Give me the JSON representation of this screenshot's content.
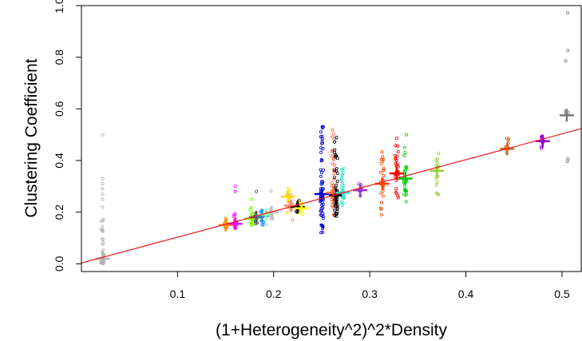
{
  "chart_data": {
    "type": "scatter",
    "title": "",
    "xlabel": "(1+Heterogeneity^2)^2*Density",
    "ylabel": "Clustering Coefficient",
    "xlim": [
      0.0,
      0.52
    ],
    "ylim": [
      -0.03,
      1.0
    ],
    "xticks": [
      {
        "value": 0.1,
        "label": "0.1"
      },
      {
        "value": 0.2,
        "label": "0.2"
      },
      {
        "value": 0.3,
        "label": "0.3"
      },
      {
        "value": 0.4,
        "label": "0.4"
      },
      {
        "value": 0.5,
        "label": "0.5"
      }
    ],
    "yticks": [
      {
        "value": 0.0,
        "label": "0.0"
      },
      {
        "value": 0.2,
        "label": "0.2"
      },
      {
        "value": 0.4,
        "label": "0.4"
      },
      {
        "value": 0.6,
        "label": "0.6"
      },
      {
        "value": 0.8,
        "label": "0.8"
      },
      {
        "value": 1.0,
        "label": "1.0"
      }
    ],
    "grid": false,
    "legend": "none",
    "regression_line": {
      "color": "#e31a1c",
      "intercept": 0.003,
      "slope": 1.0
    },
    "groups": [
      {
        "x": 0.022,
        "color": "#b3b3b3",
        "mean": 0.02,
        "low": 0.0,
        "high": 0.18,
        "n": 40,
        "outliers": [
          0.22,
          0.25,
          0.27,
          0.29,
          0.31,
          0.33,
          0.5
        ]
      },
      {
        "x": 0.15,
        "color": "#ff8c00",
        "mean": 0.15,
        "low": 0.13,
        "high": 0.19,
        "n": 14,
        "outliers": []
      },
      {
        "x": 0.16,
        "color": "#ff00ff",
        "mean": 0.155,
        "low": 0.13,
        "high": 0.21,
        "n": 14,
        "outliers": [
          0.3,
          0.28
        ]
      },
      {
        "x": 0.177,
        "color": "#7cfc00",
        "mean": 0.175,
        "low": 0.15,
        "high": 0.22,
        "n": 14,
        "outliers": [
          0.25
        ]
      },
      {
        "x": 0.182,
        "color": "#555555",
        "mean": 0.18,
        "low": 0.15,
        "high": 0.24,
        "n": 14,
        "outliers": [
          0.28
        ]
      },
      {
        "x": 0.188,
        "color": "#1e90ff",
        "mean": 0.185,
        "low": 0.15,
        "high": 0.21,
        "n": 12,
        "outliers": []
      },
      {
        "x": 0.192,
        "color": "#98fb98",
        "mean": 0.19,
        "low": 0.15,
        "high": 0.21,
        "n": 10,
        "outliers": []
      },
      {
        "x": 0.198,
        "color": "#bbbbbb",
        "mean": 0.2,
        "low": 0.15,
        "high": 0.33,
        "n": 12,
        "outliers": []
      },
      {
        "x": 0.215,
        "color": "#ffd700",
        "mean": 0.26,
        "low": 0.19,
        "high": 0.3,
        "n": 12,
        "outliers": []
      },
      {
        "x": 0.218,
        "color": "#ff7f7f",
        "mean": 0.225,
        "low": 0.16,
        "high": 0.27,
        "n": 10,
        "outliers": []
      },
      {
        "x": 0.225,
        "color": "#000000",
        "mean": 0.22,
        "low": 0.19,
        "high": 0.25,
        "n": 10,
        "outliers": []
      },
      {
        "x": 0.229,
        "color": "#ffff00",
        "mean": 0.215,
        "low": 0.19,
        "high": 0.24,
        "n": 10,
        "outliers": []
      },
      {
        "x": 0.25,
        "color": "#0000cd",
        "mean": 0.27,
        "low": 0.12,
        "high": 0.57,
        "n": 70,
        "outliers": []
      },
      {
        "x": 0.262,
        "color": "#ff6347",
        "mean": 0.275,
        "low": 0.18,
        "high": 0.56,
        "n": 45,
        "outliers": []
      },
      {
        "x": 0.265,
        "color": "#000000",
        "mean": 0.265,
        "low": 0.18,
        "high": 0.5,
        "n": 55,
        "outliers": []
      },
      {
        "x": 0.272,
        "color": "#40e0d0",
        "mean": 0.275,
        "low": 0.22,
        "high": 0.38,
        "n": 35,
        "outliers": []
      },
      {
        "x": 0.29,
        "color": "#9932cc",
        "mean": 0.285,
        "low": 0.26,
        "high": 0.32,
        "n": 10,
        "outliers": []
      },
      {
        "x": 0.313,
        "color": "#ff4500",
        "mean": 0.31,
        "low": 0.17,
        "high": 0.44,
        "n": 30,
        "outliers": []
      },
      {
        "x": 0.328,
        "color": "#ff0000",
        "mean": 0.35,
        "low": 0.25,
        "high": 0.5,
        "n": 35,
        "outliers": []
      },
      {
        "x": 0.337,
        "color": "#00cd00",
        "mean": 0.33,
        "low": 0.24,
        "high": 0.5,
        "n": 30,
        "outliers": []
      },
      {
        "x": 0.37,
        "color": "#9acd32",
        "mean": 0.36,
        "low": 0.23,
        "high": 0.46,
        "n": 18,
        "outliers": []
      },
      {
        "x": 0.443,
        "color": "#d2691e",
        "mean": 0.445,
        "low": 0.4,
        "high": 0.49,
        "n": 12,
        "outliers": []
      },
      {
        "x": 0.48,
        "color": "#9400d3",
        "mean": 0.475,
        "low": 0.44,
        "high": 0.5,
        "n": 12,
        "outliers": []
      },
      {
        "x": 0.505,
        "color": "#777777",
        "mean": 0.575,
        "low": 0.25,
        "high": 0.98,
        "n": 8,
        "outliers": []
      }
    ]
  }
}
